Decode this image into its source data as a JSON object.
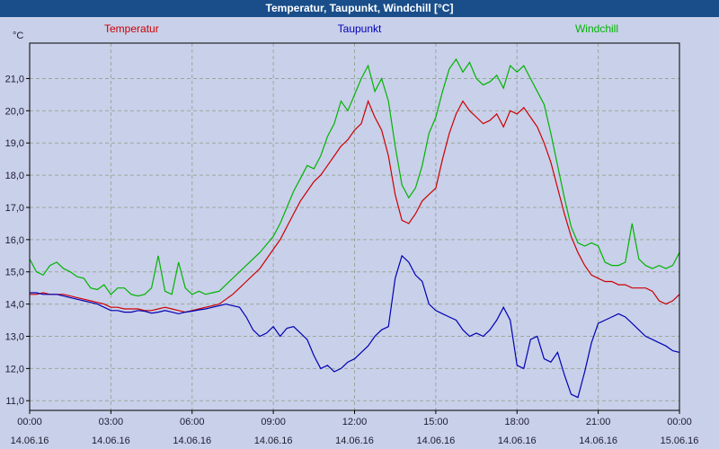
{
  "window": {
    "title": "Temperatur, Taupunkt, Windchill [°C]"
  },
  "legend": [
    {
      "label": "Temperatur",
      "color": "#cc0000"
    },
    {
      "label": "Taupunkt",
      "color": "#0000b4"
    },
    {
      "label": "Windchill",
      "color": "#00b400"
    }
  ],
  "chart_data": {
    "type": "line",
    "title": "Temperatur, Taupunkt, Windchill [°C]",
    "unit_label": "°C",
    "grid": true,
    "legend_position": "top",
    "ylim": [
      10.7,
      22.1
    ],
    "x_range_hours": [
      0,
      24
    ],
    "sample_interval_minutes": 15,
    "y_ticks": [
      {
        "value": 11,
        "label": "11,0"
      },
      {
        "value": 12,
        "label": "12,0"
      },
      {
        "value": 13,
        "label": "13,0"
      },
      {
        "value": 14,
        "label": "14,0"
      },
      {
        "value": 15,
        "label": "15,0"
      },
      {
        "value": 16,
        "label": "16,0"
      },
      {
        "value": 17,
        "label": "17,0"
      },
      {
        "value": 18,
        "label": "18,0"
      },
      {
        "value": 19,
        "label": "19,0"
      },
      {
        "value": 20,
        "label": "20,0"
      },
      {
        "value": 21,
        "label": "21,0"
      }
    ],
    "x_ticks": [
      {
        "hours": 0,
        "time": "00:00",
        "date": "14.06.16"
      },
      {
        "hours": 3,
        "time": "03:00",
        "date": "14.06.16"
      },
      {
        "hours": 6,
        "time": "06:00",
        "date": "14.06.16"
      },
      {
        "hours": 9,
        "time": "09:00",
        "date": "14.06.16"
      },
      {
        "hours": 12,
        "time": "12:00",
        "date": "14.06.16"
      },
      {
        "hours": 15,
        "time": "15:00",
        "date": "14.06.16"
      },
      {
        "hours": 18,
        "time": "18:00",
        "date": "14.06.16"
      },
      {
        "hours": 21,
        "time": "21:00",
        "date": "14.06.16"
      },
      {
        "hours": 24,
        "time": "00:00",
        "date": "15.06.16"
      }
    ],
    "series": [
      {
        "name": "Temperatur",
        "color": "#cc0000",
        "values": [
          14.3,
          14.3,
          14.35,
          14.3,
          14.3,
          14.3,
          14.25,
          14.2,
          14.15,
          14.1,
          14.05,
          14.0,
          13.9,
          13.9,
          13.85,
          13.85,
          13.85,
          13.8,
          13.8,
          13.85,
          13.9,
          13.85,
          13.8,
          13.75,
          13.8,
          13.85,
          13.9,
          13.95,
          14.0,
          14.15,
          14.3,
          14.5,
          14.7,
          14.9,
          15.1,
          15.4,
          15.7,
          16.0,
          16.4,
          16.8,
          17.2,
          17.5,
          17.8,
          18.0,
          18.3,
          18.6,
          18.9,
          19.1,
          19.4,
          19.6,
          20.3,
          19.8,
          19.4,
          18.6,
          17.4,
          16.6,
          16.5,
          16.8,
          17.2,
          17.4,
          17.6,
          18.5,
          19.3,
          19.9,
          20.3,
          20.0,
          19.8,
          19.6,
          19.7,
          19.9,
          19.5,
          20.0,
          19.9,
          20.1,
          19.8,
          19.5,
          19.0,
          18.4,
          17.6,
          16.8,
          16.1,
          15.6,
          15.2,
          14.9,
          14.8,
          14.7,
          14.7,
          14.6,
          14.6,
          14.5,
          14.5,
          14.5,
          14.4,
          14.1,
          14.0,
          14.1,
          14.3
        ]
      },
      {
        "name": "Taupunkt",
        "color": "#0000b4",
        "values": [
          14.35,
          14.35,
          14.3,
          14.3,
          14.3,
          14.25,
          14.2,
          14.15,
          14.1,
          14.05,
          14.0,
          13.9,
          13.8,
          13.8,
          13.75,
          13.75,
          13.8,
          13.78,
          13.72,
          13.75,
          13.8,
          13.75,
          13.7,
          13.75,
          13.78,
          13.82,
          13.85,
          13.9,
          13.95,
          14.0,
          13.95,
          13.9,
          13.6,
          13.2,
          13.0,
          13.1,
          13.3,
          13.0,
          13.25,
          13.3,
          13.1,
          12.9,
          12.4,
          12.0,
          12.1,
          11.9,
          12.0,
          12.2,
          12.3,
          12.5,
          12.7,
          13.0,
          13.2,
          13.3,
          14.8,
          15.5,
          15.3,
          14.9,
          14.7,
          14.0,
          13.8,
          13.7,
          13.6,
          13.5,
          13.2,
          13.0,
          13.1,
          13.0,
          13.2,
          13.5,
          13.9,
          13.5,
          12.1,
          12.0,
          12.9,
          13.0,
          12.3,
          12.2,
          12.5,
          11.8,
          11.2,
          11.1,
          11.9,
          12.8,
          13.4,
          13.5,
          13.6,
          13.7,
          13.6,
          13.4,
          13.2,
          13.0,
          12.9,
          12.8,
          12.7,
          12.55,
          12.5
        ]
      },
      {
        "name": "Windchill",
        "color": "#00b400",
        "values": [
          15.4,
          15.0,
          14.9,
          15.2,
          15.3,
          15.1,
          15.0,
          14.85,
          14.8,
          14.5,
          14.45,
          14.6,
          14.3,
          14.5,
          14.5,
          14.3,
          14.25,
          14.3,
          14.5,
          15.5,
          14.4,
          14.3,
          15.3,
          14.5,
          14.3,
          14.4,
          14.3,
          14.35,
          14.4,
          14.6,
          14.8,
          15.0,
          15.2,
          15.4,
          15.6,
          15.85,
          16.1,
          16.5,
          17.0,
          17.5,
          17.9,
          18.3,
          18.2,
          18.6,
          19.2,
          19.6,
          20.3,
          20.0,
          20.5,
          21.0,
          21.4,
          20.6,
          21.0,
          20.3,
          18.9,
          17.7,
          17.3,
          17.6,
          18.3,
          19.3,
          19.8,
          20.6,
          21.3,
          21.6,
          21.2,
          21.5,
          21.0,
          20.8,
          20.9,
          21.1,
          20.7,
          21.4,
          21.2,
          21.4,
          21.0,
          20.6,
          20.2,
          19.3,
          18.3,
          17.3,
          16.4,
          15.9,
          15.8,
          15.9,
          15.8,
          15.3,
          15.2,
          15.2,
          15.3,
          16.5,
          15.4,
          15.2,
          15.1,
          15.2,
          15.1,
          15.2,
          15.6
        ]
      }
    ]
  }
}
